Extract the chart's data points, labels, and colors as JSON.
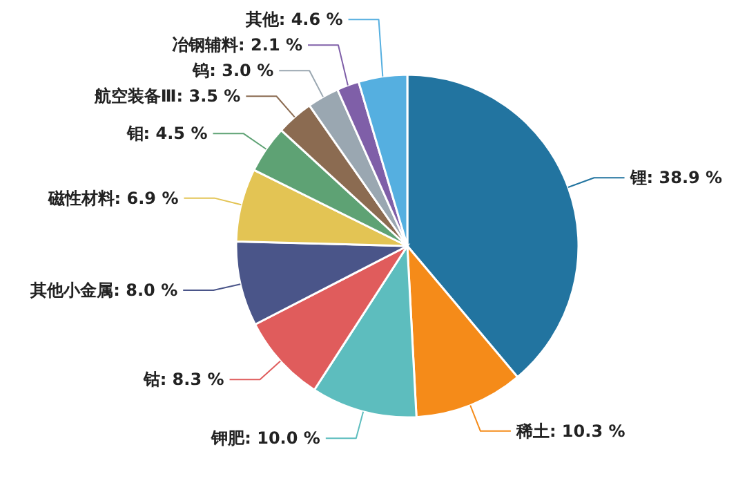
{
  "chart_data": {
    "type": "pie",
    "categories": [
      "锂",
      "稀土",
      "钾肥",
      "钴",
      "其他小金属",
      "磁性材料",
      "钼",
      "航空装备Ⅲ",
      "钨",
      "冶钢辅料",
      "其他"
    ],
    "values": [
      38.9,
      10.3,
      10.0,
      8.3,
      8.0,
      6.9,
      4.5,
      3.5,
      3.0,
      2.1,
      4.6
    ],
    "value_labels": [
      "38.9 %",
      "10.3 %",
      "10.0 %",
      "8.3 %",
      "8.0 %",
      "6.9 %",
      "4.5 %",
      "3.5 %",
      "3.0 %",
      "2.1 %",
      "4.6 %"
    ],
    "colors": [
      "#2274a0",
      "#f58b19",
      "#5dbdbe",
      "#e05c5c",
      "#4a5589",
      "#e3c454",
      "#5ea274",
      "#8b6b51",
      "#9aa7b1",
      "#7f5fa8",
      "#55afe0"
    ]
  }
}
